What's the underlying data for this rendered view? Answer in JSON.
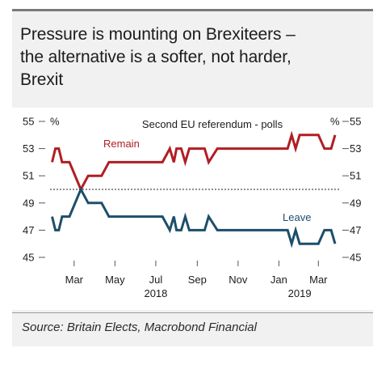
{
  "title_lines": [
    "Pressure is mounting on Brexiteers –",
    "the alternative is a softer, not harder,",
    "Brexit"
  ],
  "source": "Source: Britain Elects, Macrobond Financial",
  "colors": {
    "remain": "#b11e24",
    "leave": "#1d4e6b",
    "text": "#1c1c1c"
  },
  "chart_data": {
    "type": "line",
    "title": "Second EU referendum - polls",
    "y_unit_left": "%",
    "y_unit_right": "%",
    "ylim": [
      45,
      55
    ],
    "yticks": [
      45,
      47,
      49,
      51,
      53,
      55
    ],
    "xlim": [
      "2018-01-24",
      "2019-04-01"
    ],
    "xticks": [
      {
        "date": "2018-03-01",
        "label": "Mar"
      },
      {
        "date": "2018-05-01",
        "label": "May"
      },
      {
        "date": "2018-07-01",
        "label": "Jul"
      },
      {
        "date": "2018-09-01",
        "label": "Sep"
      },
      {
        "date": "2018-11-01",
        "label": "Nov"
      },
      {
        "date": "2019-01-01",
        "label": "Jan"
      },
      {
        "date": "2019-03-01",
        "label": "Mar"
      }
    ],
    "year_labels": [
      {
        "date": "2018-07-01",
        "label": "2018"
      },
      {
        "date": "2019-02-01",
        "label": "2019"
      }
    ],
    "reference_line": 50,
    "series": [
      {
        "name": "Remain",
        "points": [
          [
            "2018-01-27",
            52
          ],
          [
            "2018-02-01",
            53
          ],
          [
            "2018-02-06",
            53
          ],
          [
            "2018-02-11",
            52
          ],
          [
            "2018-02-22",
            52
          ],
          [
            "2018-03-11",
            50
          ],
          [
            "2018-03-22",
            51
          ],
          [
            "2018-04-11",
            51
          ],
          [
            "2018-04-22",
            52
          ],
          [
            "2018-07-11",
            52
          ],
          [
            "2018-07-22",
            53
          ],
          [
            "2018-07-28",
            52
          ],
          [
            "2018-08-01",
            53
          ],
          [
            "2018-08-08",
            53
          ],
          [
            "2018-08-14",
            52
          ],
          [
            "2018-08-20",
            53
          ],
          [
            "2018-09-12",
            53
          ],
          [
            "2018-09-18",
            52
          ],
          [
            "2018-10-01",
            53
          ],
          [
            "2019-01-14",
            53
          ],
          [
            "2019-01-20",
            54
          ],
          [
            "2019-01-26",
            53
          ],
          [
            "2019-02-01",
            54
          ],
          [
            "2019-03-01",
            54
          ],
          [
            "2019-03-10",
            53
          ],
          [
            "2019-03-20",
            53
          ],
          [
            "2019-03-26",
            54
          ]
        ]
      },
      {
        "name": "Leave",
        "points": [
          [
            "2018-01-27",
            48
          ],
          [
            "2018-02-01",
            47
          ],
          [
            "2018-02-06",
            47
          ],
          [
            "2018-02-11",
            48
          ],
          [
            "2018-02-22",
            48
          ],
          [
            "2018-03-11",
            50
          ],
          [
            "2018-03-22",
            49
          ],
          [
            "2018-04-11",
            49
          ],
          [
            "2018-04-22",
            48
          ],
          [
            "2018-07-11",
            48
          ],
          [
            "2018-07-22",
            47
          ],
          [
            "2018-07-28",
            48
          ],
          [
            "2018-08-01",
            47
          ],
          [
            "2018-08-08",
            47
          ],
          [
            "2018-08-14",
            48
          ],
          [
            "2018-08-20",
            47
          ],
          [
            "2018-09-12",
            47
          ],
          [
            "2018-09-18",
            48
          ],
          [
            "2018-10-01",
            47
          ],
          [
            "2019-01-14",
            47
          ],
          [
            "2019-01-20",
            46
          ],
          [
            "2019-01-26",
            47
          ],
          [
            "2019-02-01",
            46
          ],
          [
            "2019-03-01",
            46
          ],
          [
            "2019-03-10",
            47
          ],
          [
            "2019-03-20",
            47
          ],
          [
            "2019-03-26",
            46
          ]
        ]
      }
    ]
  }
}
